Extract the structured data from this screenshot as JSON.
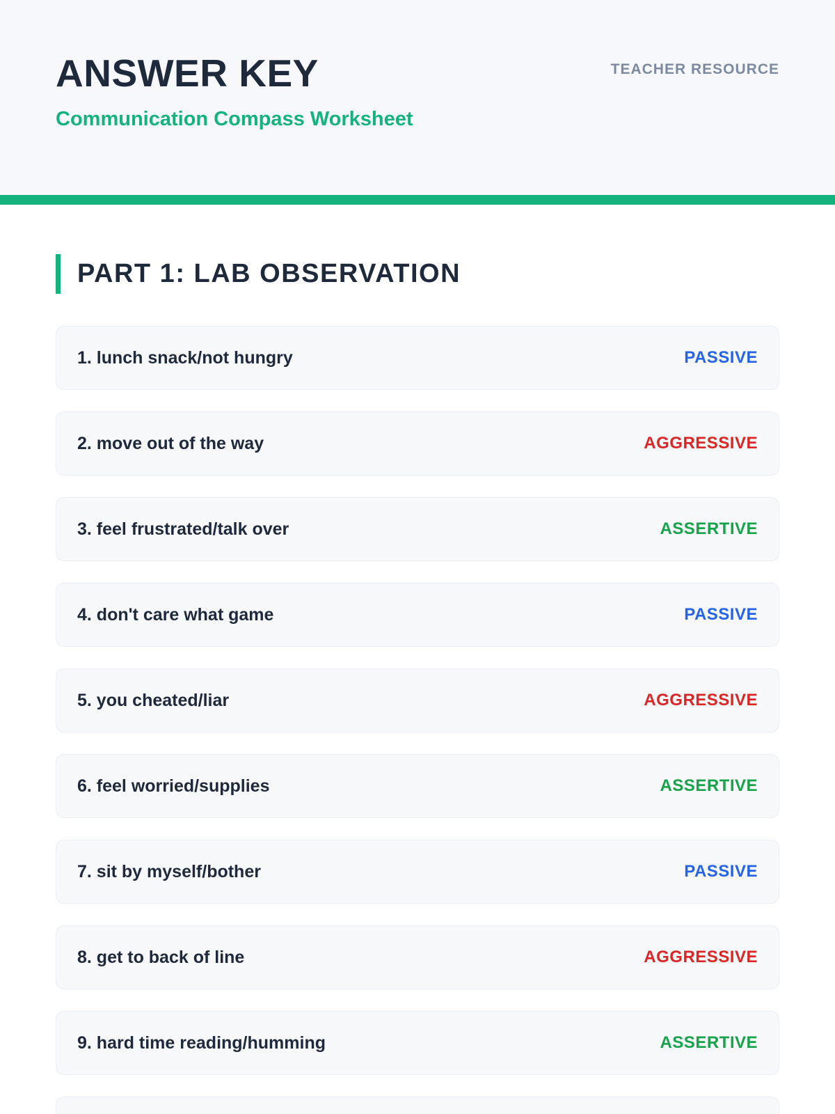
{
  "header": {
    "title": "ANSWER KEY",
    "subtitle": "Communication Compass Worksheet",
    "badge": "TEACHER RESOURCE"
  },
  "section": {
    "title": "PART 1: LAB OBSERVATION"
  },
  "items": [
    {
      "prompt": "1. lunch snack/not hungry",
      "answer": "PASSIVE",
      "type": "passive"
    },
    {
      "prompt": "2. move out of the way",
      "answer": "AGGRESSIVE",
      "type": "aggressive"
    },
    {
      "prompt": "3. feel frustrated/talk over",
      "answer": "ASSERTIVE",
      "type": "assertive"
    },
    {
      "prompt": "4. don't care what game",
      "answer": "PASSIVE",
      "type": "passive"
    },
    {
      "prompt": "5. you cheated/liar",
      "answer": "AGGRESSIVE",
      "type": "aggressive"
    },
    {
      "prompt": "6. feel worried/supplies",
      "answer": "ASSERTIVE",
      "type": "assertive"
    },
    {
      "prompt": "7. sit by myself/bother",
      "answer": "PASSIVE",
      "type": "passive"
    },
    {
      "prompt": "8. get to back of line",
      "answer": "AGGRESSIVE",
      "type": "aggressive"
    },
    {
      "prompt": "9. hard time reading/humming",
      "answer": "ASSERTIVE",
      "type": "assertive"
    },
    {
      "prompt": "",
      "answer": "",
      "type": "partial"
    }
  ],
  "colors": {
    "accent": "#14b37d",
    "navy": "#1e293b",
    "passive": "#2563eb",
    "aggressive": "#dc2626",
    "assertive": "#16a34a",
    "badge_gray": "#7c8aa0",
    "header_bg": "#f7f8fb",
    "card_bg": "#f7f8fa"
  }
}
